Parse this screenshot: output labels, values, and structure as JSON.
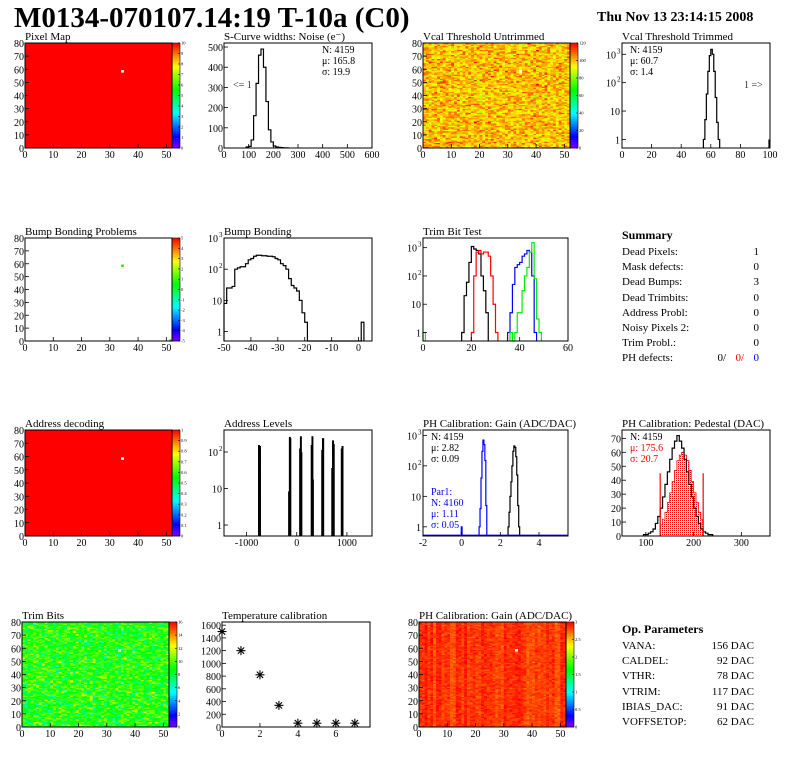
{
  "header": {
    "title": "M0134-070107.14:19 T-10a (C0)",
    "date": "Thu Nov 13 23:14:15 2008"
  },
  "summary": {
    "title": "Summary",
    "rows": [
      {
        "label": "Dead Pixels:",
        "value": "1"
      },
      {
        "label": "Mask defects:",
        "value": "0"
      },
      {
        "label": "Dead Bumps:",
        "value": "3"
      },
      {
        "label": "Dead Trimbits:",
        "value": "0"
      },
      {
        "label": "Address Probl:",
        "value": "0"
      },
      {
        "label": "Noisy Pixels 2:",
        "value": "0"
      },
      {
        "label": "Trim Probl.:",
        "value": "0"
      }
    ],
    "ph_defects": {
      "label": "PH defects:",
      "v1": "0/",
      "v2": "0/",
      "v3": "0"
    },
    "colors": {
      "black": "#000000",
      "red": "#ff0000",
      "blue": "#0000ff"
    }
  },
  "op_parameters": {
    "title": "Op. Parameters",
    "rows": [
      {
        "label": "VANA:",
        "value": "156 DAC"
      },
      {
        "label": "CALDEL:",
        "value": "92 DAC"
      },
      {
        "label": "VTHR:",
        "value": "78 DAC"
      },
      {
        "label": "VTRIM:",
        "value": "117 DAC"
      },
      {
        "label": "IBIAS_DAC:",
        "value": "91 DAC"
      },
      {
        "label": "VOFFSETOP:",
        "value": "62 DAC"
      }
    ]
  },
  "chart_data": [
    {
      "id": "pixel-map",
      "type": "heatmap",
      "title": "Pixel Map",
      "xlim": [
        0,
        52
      ],
      "ylim": [
        0,
        80
      ],
      "zlim": [
        0,
        10
      ],
      "xticks": [
        0,
        10,
        20,
        30,
        40,
        50
      ],
      "yticks": [
        0,
        10,
        20,
        30,
        40,
        50,
        60,
        70,
        80
      ],
      "zticks": [
        0,
        1,
        2,
        3,
        4,
        5,
        6,
        7,
        8,
        9,
        10
      ],
      "fill_value": 10,
      "special_pixels": [
        {
          "x": 34,
          "y": 58,
          "color": "#ffffff"
        }
      ]
    },
    {
      "id": "s-curve-widths",
      "type": "bar",
      "title": "S-Curve widths: Noise (e⁻)",
      "xlim": [
        0,
        600
      ],
      "ylim": [
        0,
        520
      ],
      "log": false,
      "xticks": [
        0,
        100,
        200,
        300,
        400,
        500,
        600
      ],
      "yticks": [
        0,
        100,
        200,
        300,
        400,
        500
      ],
      "stats": [
        "N: 4159",
        "μ: 165.8",
        "σ: 19.9"
      ],
      "annotation": "<= 1",
      "series": [
        {
          "color": "#000000",
          "start": 90,
          "width": 10,
          "values": [
            5,
            8,
            40,
            160,
            320,
            460,
            490,
            400,
            230,
            90,
            30,
            10,
            5,
            3,
            2,
            1,
            1
          ]
        }
      ]
    },
    {
      "id": "vcal-threshold-untrimmed",
      "type": "heatmap",
      "title": "Vcal Threshold Untrimmed",
      "xlim": [
        0,
        52
      ],
      "ylim": [
        0,
        80
      ],
      "zlim": [
        0,
        120
      ],
      "xticks": [
        0,
        10,
        20,
        30,
        40,
        50
      ],
      "yticks": [
        0,
        10,
        20,
        30,
        40,
        50,
        60,
        70,
        80
      ],
      "zticks": [
        0,
        20,
        40,
        60,
        80,
        100,
        120
      ],
      "value_mean": 100,
      "value_spread": 7,
      "special_pixels": [
        {
          "x": 34,
          "y": 58,
          "color": "#ffffff"
        }
      ]
    },
    {
      "id": "vcal-threshold-trimmed",
      "type": "bar",
      "title": "Vcal Threshold Trimmed",
      "xlim": [
        0,
        100
      ],
      "ylim": [
        0.5,
        2500
      ],
      "log": true,
      "xticks": [
        0,
        20,
        40,
        60,
        80,
        100
      ],
      "yticks": [
        1,
        10,
        100,
        1000
      ],
      "stats": [
        "N: 4159",
        "μ: 60.7",
        "σ:  1.4"
      ],
      "annotation": "1 =>",
      "series": [
        {
          "color": "#000000",
          "start": 55,
          "width": 1,
          "values": [
            1,
            5,
            40,
            250,
            900,
            1500,
            1000,
            250,
            30,
            4,
            1
          ]
        }
      ]
    },
    {
      "id": "bump-bonding-problems",
      "type": "heatmap",
      "title": "Bump Bonding Problems",
      "xlim": [
        0,
        52
      ],
      "ylim": [
        0,
        80
      ],
      "zlim": [
        -5,
        5
      ],
      "xticks": [
        0,
        10,
        20,
        30,
        40,
        50
      ],
      "yticks": [
        0,
        10,
        20,
        30,
        40,
        50,
        60,
        70,
        80
      ],
      "zticks": [
        -5,
        -4,
        -3,
        -2,
        -1,
        0,
        1,
        2,
        3,
        4,
        5
      ],
      "fill_value": null,
      "special_pixels": [
        {
          "x": 34,
          "y": 58,
          "color": "#22ee22"
        },
        {
          "x": 51,
          "y": 0,
          "color": "#22ee55"
        }
      ]
    },
    {
      "id": "bump-bonding",
      "type": "bar",
      "title": "Bump Bonding",
      "xlim": [
        -50,
        5
      ],
      "ylim": [
        0.5,
        1000
      ],
      "log": true,
      "xticks": [
        -50,
        -40,
        -30,
        -20,
        -10,
        0
      ],
      "yticks": [
        1,
        10,
        100,
        1000
      ],
      "series": [
        {
          "color": "#000000",
          "start": -50,
          "width": 1,
          "values": [
            8,
            25,
            25,
            28,
            100,
            110,
            120,
            120,
            150,
            200,
            220,
            260,
            280,
            280,
            270,
            270,
            260,
            260,
            250,
            220,
            200,
            150,
            130,
            100,
            50,
            30,
            25,
            20,
            10,
            4,
            2,
            0,
            0,
            0,
            0,
            0,
            0,
            0,
            0,
            0,
            0,
            0,
            0,
            0,
            0,
            0,
            0,
            0,
            0,
            0,
            0,
            2
          ]
        }
      ]
    },
    {
      "id": "trim-bit-test",
      "type": "bar",
      "title": "Trim Bit Test",
      "xlim": [
        0,
        60
      ],
      "ylim": [
        0.5,
        2200
      ],
      "log": true,
      "xticks": [
        0,
        20,
        40,
        60
      ],
      "yticks": [
        1,
        10,
        100,
        1000
      ],
      "series": [
        {
          "color": "#000000",
          "start": 16,
          "width": 1,
          "values": [
            1,
            20,
            60,
            300,
            1100,
            900,
            800,
            600,
            100,
            30,
            5
          ]
        },
        {
          "color": "#ff0000",
          "start": 20,
          "width": 1,
          "values": [
            1,
            100,
            700,
            800,
            600,
            700,
            700,
            500,
            100,
            10,
            1
          ]
        },
        {
          "color": "#0000ff",
          "start": 35,
          "width": 1,
          "values": [
            1,
            5,
            50,
            200,
            250,
            300,
            500,
            600,
            800,
            700,
            100,
            1
          ]
        },
        {
          "color": "#00ee00",
          "start": 36,
          "width": 1,
          "values": [
            1,
            0,
            1,
            5,
            5,
            30,
            100,
            200,
            700,
            1500,
            80,
            3,
            1
          ]
        },
        {
          "color": "#00ee00",
          "start": 0,
          "width": 1,
          "values": [
            1
          ]
        }
      ]
    },
    {
      "id": "address-decoding",
      "type": "heatmap",
      "title": "Address decoding",
      "xlim": [
        0,
        52
      ],
      "ylim": [
        0,
        80
      ],
      "zlim": [
        0,
        1
      ],
      "xticks": [
        0,
        10,
        20,
        30,
        40,
        50
      ],
      "yticks": [
        0,
        10,
        20,
        30,
        40,
        50,
        60,
        70,
        80
      ],
      "zticks": [
        0,
        0.1,
        0.2,
        0.3,
        0.4,
        0.5,
        0.6,
        0.7,
        0.8,
        0.9,
        1
      ],
      "fill_value": 1,
      "special_pixels": [
        {
          "x": 34,
          "y": 58,
          "color": "#ffffff"
        }
      ]
    },
    {
      "id": "address-levels",
      "type": "bar",
      "title": "Address Levels",
      "xlim": [
        -1450,
        1500
      ],
      "ylim": [
        0.5,
        400
      ],
      "log": true,
      "xticks": [
        -1000,
        0,
        1000
      ],
      "yticks": [
        1,
        10,
        100
      ],
      "series": [
        {
          "color": "#000000",
          "bins": [
            [
              -760,
              -745,
              150
            ],
            [
              -745,
              -725,
              140
            ],
            [
              -160,
              -145,
              8
            ],
            [
              -145,
              -130,
              250
            ],
            [
              -130,
              -120,
              230
            ],
            [
              60,
              75,
              120
            ],
            [
              75,
              90,
              260
            ],
            [
              90,
              100,
              95
            ],
            [
              290,
              305,
              150
            ],
            [
              305,
              320,
              260
            ],
            [
              320,
              330,
              17
            ],
            [
              500,
              515,
              110
            ],
            [
              515,
              535,
              230
            ],
            [
              700,
              715,
              35
            ],
            [
              715,
              730,
              200
            ],
            [
              730,
              745,
              160
            ],
            [
              890,
              905,
              120
            ],
            [
              905,
              920,
              140
            ]
          ]
        }
      ]
    },
    {
      "id": "ph-calibration-gain",
      "type": "bar",
      "title": "PH Calibration: Gain (ADC/DAC)",
      "xlim": [
        -2,
        5.5
      ],
      "ylim": [
        0.5,
        1500
      ],
      "log": true,
      "xticks": [
        -2,
        0,
        2,
        4
      ],
      "yticks": [
        1,
        10,
        100,
        1000
      ],
      "stats": [
        "N: 4159",
        "μ: 2.82",
        "σ: 0.09"
      ],
      "stats2": [
        "Par1:",
        "N: 4160",
        "μ: 1.11",
        "σ: 0.05"
      ],
      "series": [
        {
          "color": "#000000",
          "start": 2.4,
          "width": 0.05,
          "values": [
            1,
            3,
            10,
            30,
            100,
            300,
            450,
            400,
            200,
            50,
            5,
            1
          ]
        },
        {
          "color": "#0000ff",
          "start": 0.9,
          "width": 0.05,
          "values": [
            1,
            4,
            40,
            300,
            700,
            500,
            150,
            5
          ]
        },
        {
          "color": "#0000ff",
          "start": -0.02,
          "width": 0.04,
          "values": [
            1
          ]
        }
      ]
    },
    {
      "id": "ph-calibration-pedestal",
      "type": "bar",
      "title": "PH Calibration: Pedestal (DAC)",
      "xlim": [
        50,
        360
      ],
      "ylim": [
        0,
        76
      ],
      "log": false,
      "xticks": [
        100,
        200,
        300
      ],
      "yticks": [
        0,
        10,
        20,
        30,
        40,
        50,
        60,
        70
      ],
      "stats": [
        "N: 4159",
        "μ: 175.6",
        "σ: 20.7"
      ],
      "series": [
        {
          "color": "#ff0000",
          "fill": true,
          "start": 130,
          "width": 5,
          "values": [
            8,
            12,
            17,
            24,
            31,
            39,
            47,
            54,
            58,
            60,
            58,
            54,
            47,
            39,
            31,
            24,
            17,
            12
          ]
        },
        {
          "color": "#000000",
          "start": 95,
          "width": 5,
          "values": [
            1,
            1,
            2,
            3,
            5,
            9,
            14,
            20,
            28,
            37,
            46,
            55,
            63,
            68,
            72,
            68,
            63,
            55,
            46,
            37,
            28,
            20,
            14,
            9,
            5,
            3,
            2,
            1,
            1
          ]
        }
      ],
      "fit_range": [
        130,
        220
      ],
      "fit_marker_value": 45
    },
    {
      "id": "trim-bits",
      "type": "heatmap",
      "title": "Trim Bits",
      "xlim": [
        0,
        52
      ],
      "ylim": [
        0,
        80
      ],
      "zlim": [
        0,
        16
      ],
      "xticks": [
        0,
        10,
        20,
        30,
        40,
        50
      ],
      "yticks": [
        0,
        10,
        20,
        30,
        40,
        50,
        60,
        70,
        80
      ],
      "zticks": [
        0,
        2,
        4,
        6,
        8,
        10,
        12,
        14,
        16
      ],
      "value_mean": 9.2,
      "value_spread": 1.3,
      "special_pixels": [
        {
          "x": 34,
          "y": 58,
          "color": "#ffffff"
        }
      ]
    },
    {
      "id": "temperature-calibration",
      "type": "scatter",
      "title": "Temperature calibration",
      "xlim": [
        0,
        7.8
      ],
      "ylim": [
        0,
        1650
      ],
      "xticks": [
        0,
        2,
        4,
        6
      ],
      "yticks": [
        0,
        200,
        400,
        600,
        800,
        1000,
        1200,
        1400,
        1600
      ],
      "x": [
        0,
        1,
        2,
        3,
        4,
        5,
        6,
        7
      ],
      "y": [
        1500,
        1200,
        820,
        340,
        60,
        60,
        60,
        60
      ]
    },
    {
      "id": "ph-calibration-gain-map",
      "type": "heatmap",
      "title": "PH Calibration: Gain (ADC/DAC)",
      "xlim": [
        0,
        52
      ],
      "ylim": [
        0,
        80
      ],
      "zlim": [
        0,
        3
      ],
      "xticks": [
        0,
        10,
        20,
        30,
        40,
        50
      ],
      "yticks": [
        0,
        10,
        20,
        30,
        40,
        50,
        60,
        70,
        80
      ],
      "zticks": [
        0,
        0.5,
        1,
        1.5,
        2,
        2.5,
        3
      ],
      "value_mean": 2.86,
      "value_spread": 0.06,
      "column_pattern": true,
      "special_pixels": [
        {
          "x": 34,
          "y": 58,
          "color": "#ffffff"
        }
      ]
    }
  ]
}
